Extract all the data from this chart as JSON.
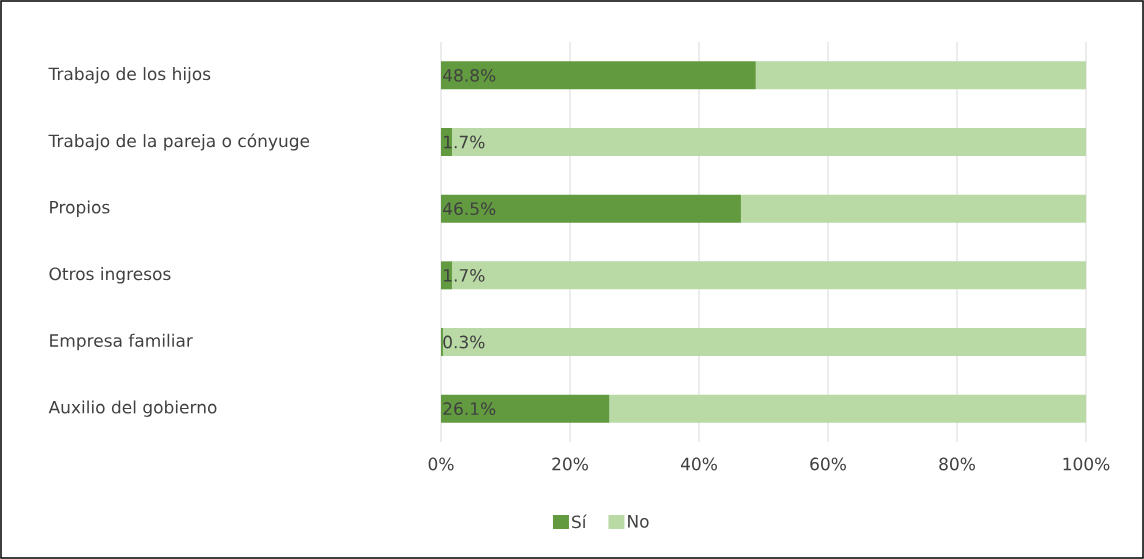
{
  "chart_data": {
    "type": "bar",
    "orientation": "horizontal",
    "stacked": true,
    "categories": [
      "Trabajo de los hijos",
      "Trabajo de la pareja o cónyuge",
      "Propios",
      "Otros ingresos",
      "Empresa familiar",
      "Auxilio del gobierno"
    ],
    "series": [
      {
        "name": "Sí",
        "color": "#629a3f",
        "values": [
          48.8,
          1.7,
          46.5,
          1.7,
          0.3,
          26.1
        ],
        "value_labels": [
          "48.8%",
          "1.7%",
          "46.5%",
          "1.7%",
          "0.3%",
          "26.1%"
        ]
      },
      {
        "name": "No",
        "color": "#b9d9a5",
        "values": [
          51.2,
          98.3,
          53.5,
          98.3,
          99.7,
          73.9
        ]
      }
    ],
    "xlim": [
      0,
      100
    ],
    "xticks": [
      {
        "value": 0,
        "label": "0%"
      },
      {
        "value": 20,
        "label": "20%"
      },
      {
        "value": 40,
        "label": "40%"
      },
      {
        "value": 60,
        "label": "60%"
      },
      {
        "value": 80,
        "label": "80%"
      },
      {
        "value": 100,
        "label": "100%"
      }
    ],
    "grid": "x",
    "legend": "bottom"
  }
}
